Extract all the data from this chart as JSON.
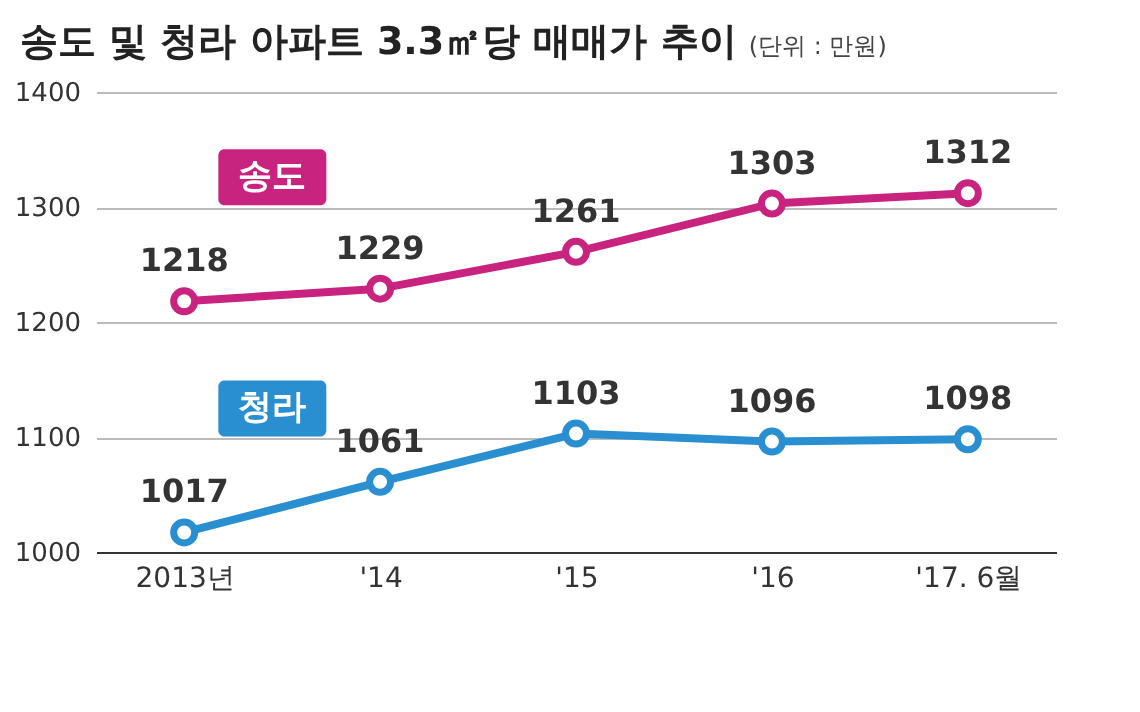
{
  "chart_data": {
    "type": "line",
    "title": "송도 및 청라 아파트 3.3㎡당 매매가 추이",
    "subtitle": "(단위 : 만원)",
    "categories": [
      "2013년",
      "'14",
      "'15",
      "'16",
      "'17. 6월"
    ],
    "series": [
      {
        "name": "송도",
        "color": "#c8237f",
        "values": [
          1218,
          1229,
          1261,
          1303,
          1312
        ]
      },
      {
        "name": "청라",
        "color": "#2a8fd0",
        "values": [
          1017,
          1061,
          1103,
          1096,
          1098
        ]
      }
    ],
    "ylim": [
      1000,
      1400
    ],
    "yticks": [
      1000,
      1100,
      1200,
      1300,
      1400
    ],
    "grid": "y",
    "data_labels": true,
    "marker": "circle"
  }
}
